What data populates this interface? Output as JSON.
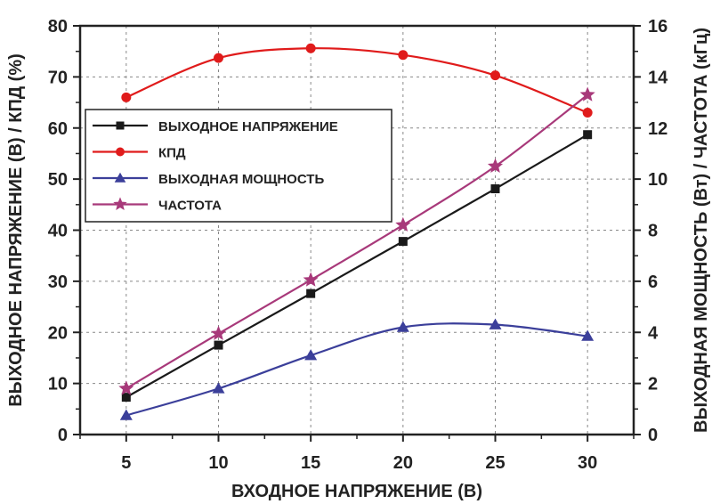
{
  "chart_data": {
    "type": "line",
    "xlabel": "ВХОДНОЕ НАПРЯЖЕНИЕ (В)",
    "ylabel_left": "ВЫХОДНОЕ НАПРЯЖЕНИЕ (В) / КПД (%)",
    "ylabel_right": "ВЫХОДНАЯ МОЩНОСТЬ (Вт) / ЧАСТОТА (кГц)",
    "x": [
      5,
      10,
      15,
      20,
      25,
      30
    ],
    "xlim": [
      2.5,
      32.5
    ],
    "ylim_left": [
      0,
      80
    ],
    "ylim_right": [
      0,
      16
    ],
    "x_ticks": [
      "5",
      "10",
      "15",
      "20",
      "25",
      "30"
    ],
    "y_left_ticks": [
      "0",
      "10",
      "20",
      "30",
      "40",
      "50",
      "60",
      "70",
      "80"
    ],
    "y_right_ticks": [
      "0",
      "2",
      "4",
      "6",
      "8",
      "10",
      "12",
      "14",
      "16"
    ],
    "grid": true,
    "legend_position": "middle-left",
    "series": [
      {
        "name": "ВЫХОДНОЕ НАПРЯЖЕНИЕ",
        "axis": "left",
        "marker": "square",
        "color": "#1a1a1a",
        "values": [
          7.3,
          17.5,
          27.6,
          37.8,
          48.1,
          58.7
        ]
      },
      {
        "name": "КПД",
        "axis": "left",
        "marker": "circle",
        "color": "#e01b1b",
        "values": [
          66,
          73.7,
          75.6,
          74.3,
          70.3,
          63
        ]
      },
      {
        "name": "ВЫХОДНАЯ МОЩНОСТЬ",
        "axis": "right",
        "marker": "triangle",
        "color": "#3b3f9a",
        "values": [
          0.75,
          1.8,
          3.1,
          4.2,
          4.3,
          3.85
        ]
      },
      {
        "name": "ЧАСТОТА",
        "axis": "right",
        "marker": "star",
        "color": "#a8397a",
        "values": [
          1.8,
          3.95,
          6.05,
          8.2,
          10.5,
          13.3
        ]
      }
    ]
  }
}
